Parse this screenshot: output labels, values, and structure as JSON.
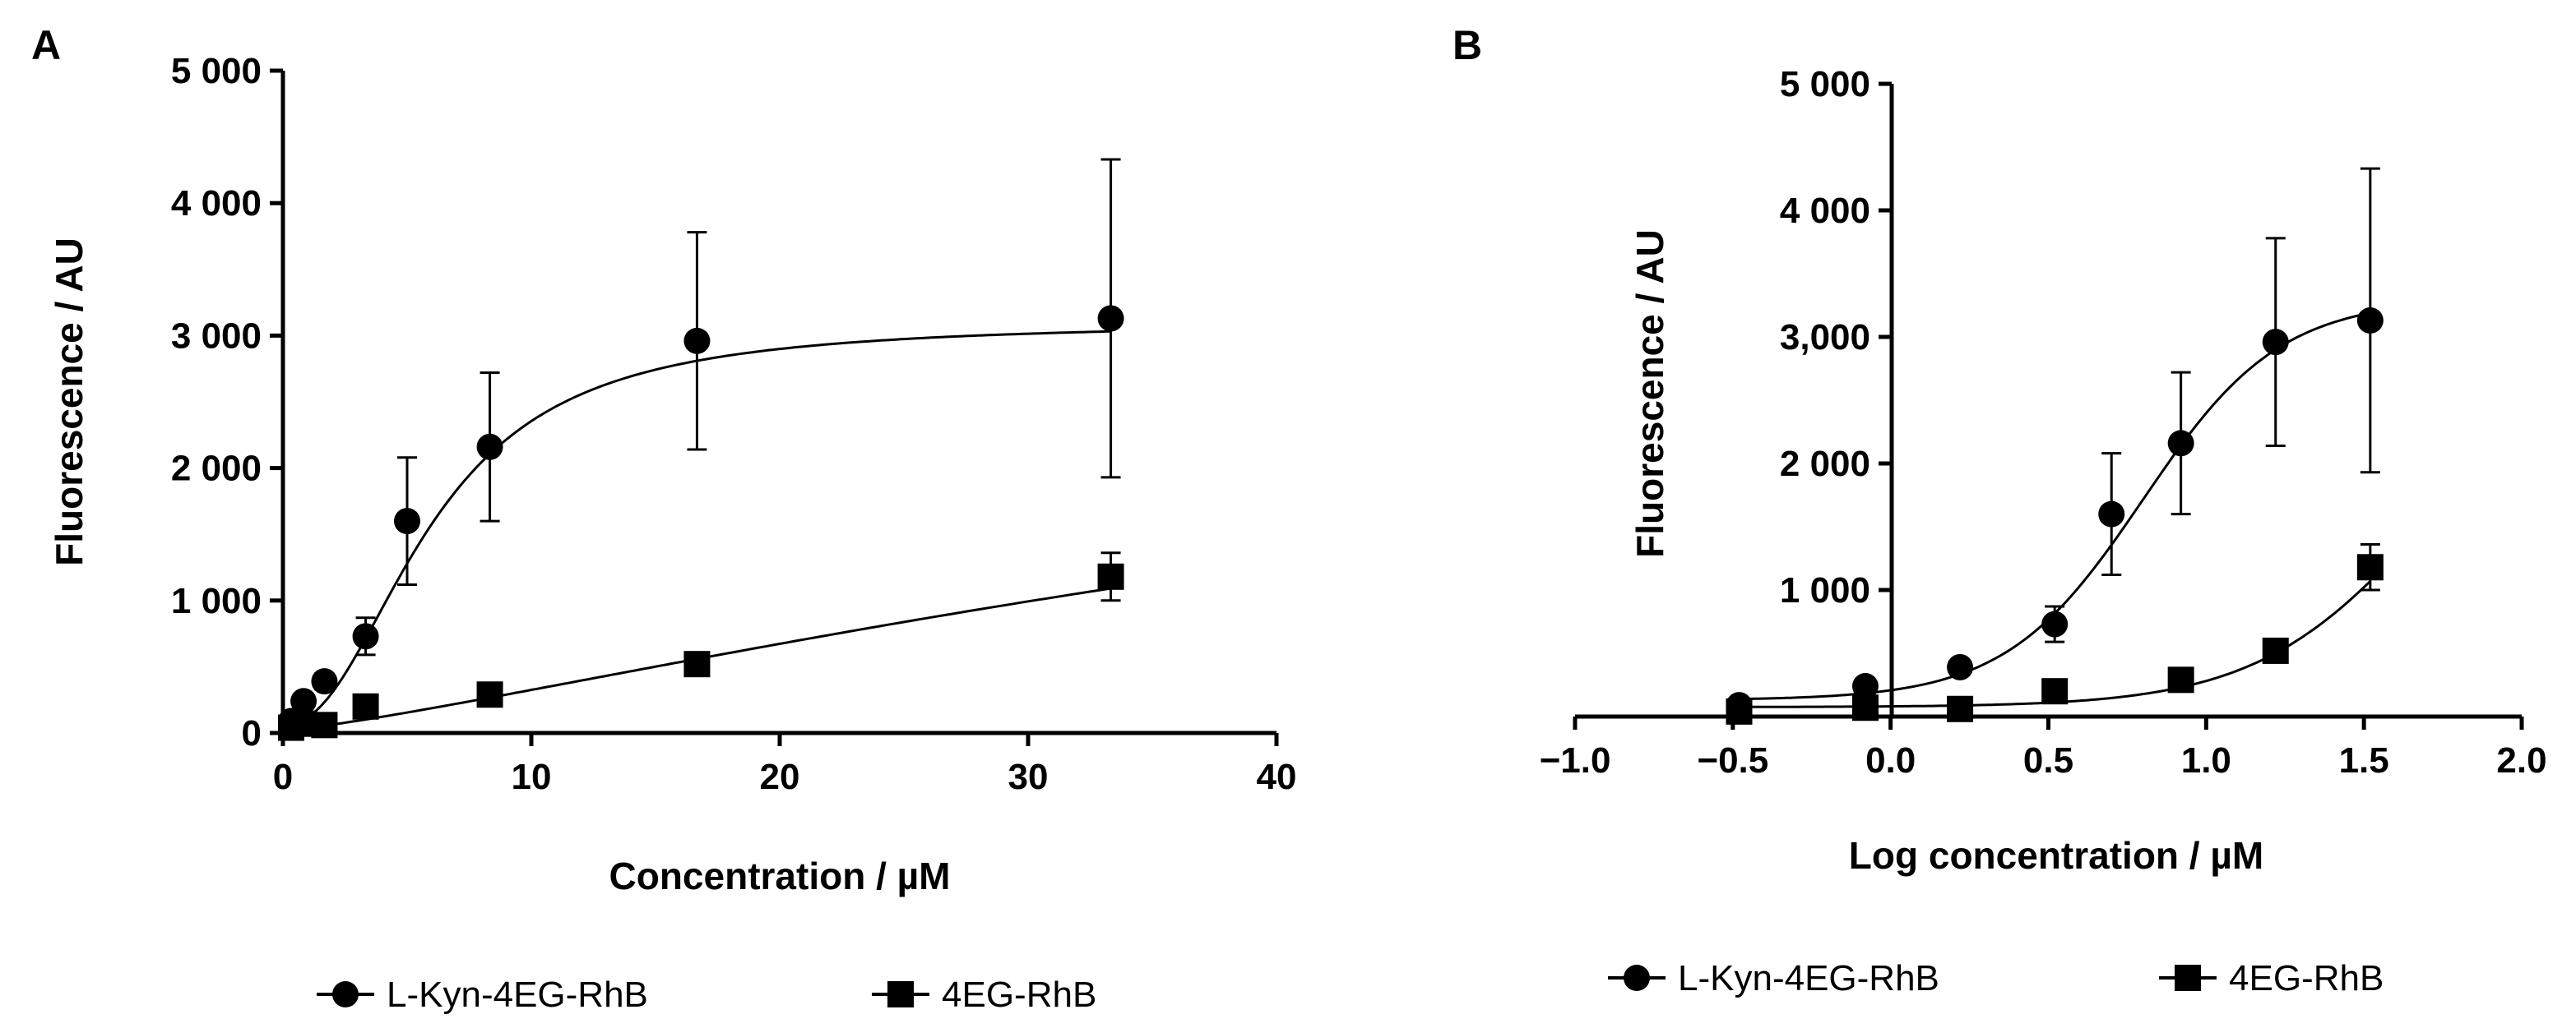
{
  "chart_data": [
    {
      "panel": "A",
      "type": "scatter",
      "title": "",
      "xlabel": "Concentration / µM",
      "ylabel": "Fluorescence / AU",
      "xlim": [
        0,
        40
      ],
      "ylim": [
        0,
        5000
      ],
      "xticks": [
        0,
        10,
        20,
        30,
        40
      ],
      "xtick_labels": [
        "0",
        "10",
        "20",
        "30",
        "40"
      ],
      "yticks": [
        0,
        1000,
        2000,
        3000,
        4000,
        5000
      ],
      "ytick_labels": [
        "0",
        "1 000",
        "2 000",
        "3 000",
        "4 000",
        "5 000"
      ],
      "series": [
        {
          "name": "L-Kyn-4EG-RhB",
          "marker": "circle",
          "x": [
            0.33,
            0.83,
            1.67,
            3.33,
            5.0,
            8.33,
            16.67,
            33.33
          ],
          "y": [
            90,
            240,
            390,
            730,
            1600,
            2160,
            2960,
            3130
          ],
          "err": [
            40,
            50,
            60,
            140,
            480,
            560,
            820,
            1200
          ],
          "fit": {
            "model": "sigmoid",
            "top": 3100,
            "bottom": 60,
            "ec50": 6.0,
            "hill": 2.2
          }
        },
        {
          "name": "4EG-RhB",
          "marker": "square",
          "x": [
            0.33,
            0.83,
            1.67,
            3.33,
            8.33,
            16.67,
            33.33
          ],
          "y": [
            40,
            70,
            60,
            200,
            290,
            520,
            1180
          ],
          "err": [
            20,
            30,
            30,
            50,
            50,
            80,
            180
          ],
          "fit": {
            "model": "sigmoid",
            "top": 3800,
            "bottom": 20,
            "ec50": 70,
            "hill": 1.25
          }
        }
      ],
      "legend": "bottom"
    },
    {
      "panel": "B",
      "type": "scatter",
      "title": "",
      "xlabel": "Log concentration / µM",
      "ylabel": "Fluorescence / AU",
      "xlim": [
        -1.0,
        2.0
      ],
      "ylim": [
        0,
        5000
      ],
      "xticks": [
        -1.0,
        -0.5,
        0.0,
        0.5,
        1.0,
        1.5,
        2.0
      ],
      "xtick_labels": [
        "−1.0",
        "−0.5",
        "0.0",
        "0.5",
        "1.0",
        "1.5",
        "2.0"
      ],
      "yticks": [
        1000,
        2000,
        3000,
        4000,
        5000
      ],
      "ytick_labels": [
        "1 000",
        "2 000",
        "3,000",
        "4 000",
        "5 000"
      ],
      "series": [
        {
          "name": "L-Kyn-4EG-RhB",
          "marker": "circle",
          "x": [
            -0.48,
            -0.08,
            0.22,
            0.52,
            0.7,
            0.92,
            1.22,
            1.52
          ],
          "y": [
            90,
            240,
            390,
            730,
            1600,
            2160,
            2960,
            3130
          ],
          "err": [
            40,
            50,
            60,
            140,
            480,
            560,
            820,
            1200
          ],
          "fit": {
            "model": "sigmoid",
            "top": 3300,
            "bottom": 130,
            "log_ec50": 0.8,
            "hill": 2.0
          }
        },
        {
          "name": "4EG-RhB",
          "marker": "square",
          "x": [
            -0.48,
            -0.08,
            0.22,
            0.52,
            0.92,
            1.22,
            1.52
          ],
          "y": [
            40,
            70,
            60,
            200,
            290,
            520,
            1180
          ],
          "err": [
            20,
            30,
            30,
            50,
            50,
            80,
            180
          ],
          "fit": {
            "model": "sigmoid",
            "top": 3000,
            "bottom": 75,
            "log_ec50": 1.7,
            "hill": 1.6
          }
        }
      ],
      "legend": "bottom"
    }
  ]
}
